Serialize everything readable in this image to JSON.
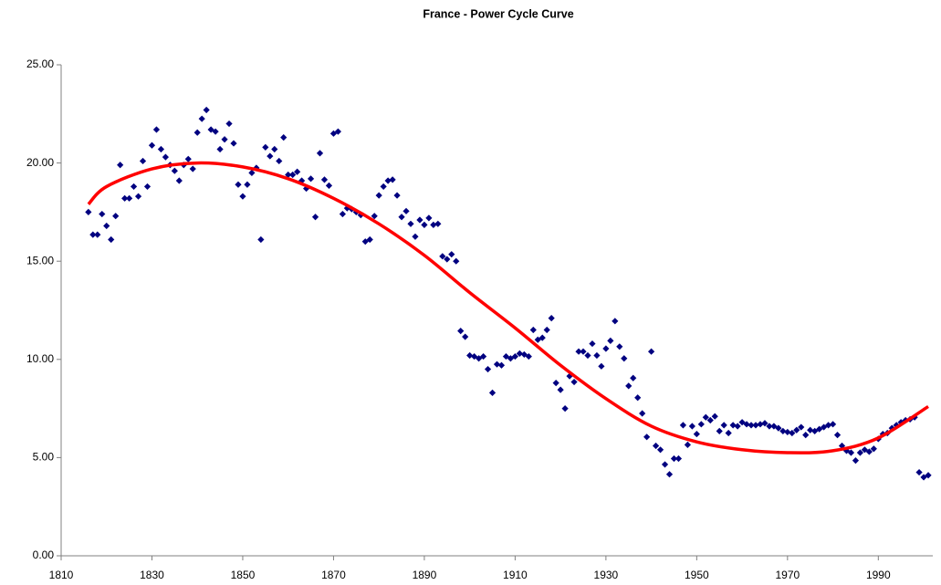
{
  "chart_data": {
    "type": "scatter",
    "title": "France - Power Cycle Curve",
    "xlim": [
      1810,
      2002
    ],
    "xticks": [
      1810,
      1830,
      1850,
      1870,
      1890,
      1910,
      1930,
      1950,
      1970,
      1990
    ],
    "ylim": [
      0,
      25
    ],
    "yticks": [
      {
        "value": 0,
        "label": "0.00"
      },
      {
        "value": 5,
        "label": "5.00"
      },
      {
        "value": 10,
        "label": "10.00"
      },
      {
        "value": 15,
        "label": "15.00"
      },
      {
        "value": 20,
        "label": "20.00"
      },
      {
        "value": 25,
        "label": "25.00"
      }
    ],
    "series": [
      {
        "style": "markers",
        "color": "#000080",
        "x": [
          1816,
          1817,
          1818,
          1819,
          1820,
          1821,
          1822,
          1823,
          1824,
          1825,
          1826,
          1827,
          1828,
          1829,
          1830,
          1831,
          1832,
          1833,
          1834,
          1835,
          1836,
          1837,
          1838,
          1839,
          1840,
          1841,
          1842,
          1843,
          1844,
          1845,
          1846,
          1847,
          1848,
          1849,
          1850,
          1851,
          1852,
          1853,
          1854,
          1855,
          1856,
          1857,
          1858,
          1859,
          1860,
          1861,
          1862,
          1863,
          1864,
          1865,
          1866,
          1867,
          1868,
          1869,
          1870,
          1871,
          1872,
          1873,
          1874,
          1875,
          1876,
          1877,
          1878,
          1879,
          1880,
          1881,
          1882,
          1883,
          1884,
          1885,
          1886,
          1887,
          1888,
          1889,
          1890,
          1891,
          1892,
          1893,
          1894,
          1895,
          1896,
          1897,
          1898,
          1899,
          1900,
          1901,
          1902,
          1903,
          1904,
          1905,
          1906,
          1907,
          1908,
          1909,
          1910,
          1911,
          1912,
          1913,
          1914,
          1915,
          1916,
          1917,
          1918,
          1919,
          1920,
          1921,
          1922,
          1923,
          1924,
          1925,
          1926,
          1927,
          1928,
          1929,
          1930,
          1931,
          1932,
          1933,
          1934,
          1935,
          1936,
          1937,
          1938,
          1939,
          1940,
          1941,
          1942,
          1943,
          1944,
          1945,
          1946,
          1947,
          1948,
          1949,
          1950,
          1951,
          1952,
          1953,
          1954,
          1955,
          1956,
          1957,
          1958,
          1959,
          1960,
          1961,
          1962,
          1963,
          1964,
          1965,
          1966,
          1967,
          1968,
          1969,
          1970,
          1971,
          1972,
          1973,
          1974,
          1975,
          1976,
          1977,
          1978,
          1979,
          1980,
          1981,
          1982,
          1983,
          1984,
          1985,
          1986,
          1987,
          1988,
          1989,
          1990,
          1991,
          1992,
          1993,
          1994,
          1995,
          1996,
          1997,
          1998,
          1999,
          2000,
          2001
        ],
        "values": [
          17.5,
          16.35,
          16.35,
          17.4,
          16.8,
          16.1,
          17.3,
          19.9,
          18.2,
          18.2,
          18.8,
          18.3,
          20.1,
          18.8,
          20.9,
          21.7,
          20.7,
          20.3,
          19.9,
          19.6,
          19.1,
          19.9,
          20.2,
          19.7,
          21.55,
          22.25,
          22.7,
          21.7,
          21.6,
          20.7,
          21.2,
          22.0,
          21.0,
          18.9,
          18.3,
          18.9,
          19.5,
          19.75,
          16.1,
          20.8,
          20.35,
          20.7,
          20.1,
          21.3,
          19.4,
          19.4,
          19.55,
          19.1,
          18.7,
          19.2,
          17.25,
          20.5,
          19.15,
          18.85,
          21.5,
          21.6,
          17.4,
          17.7,
          17.65,
          17.5,
          17.35,
          16.0,
          16.1,
          17.3,
          18.35,
          18.8,
          19.1,
          19.15,
          18.35,
          17.25,
          17.55,
          16.9,
          16.25,
          17.1,
          16.85,
          17.2,
          16.85,
          16.9,
          15.25,
          15.1,
          15.35,
          15.0,
          11.45,
          11.15,
          10.2,
          10.15,
          10.05,
          10.15,
          9.5,
          8.3,
          9.75,
          9.7,
          10.15,
          10.05,
          10.15,
          10.3,
          10.25,
          10.15,
          11.5,
          11.0,
          11.1,
          11.5,
          12.1,
          8.8,
          8.45,
          7.5,
          9.15,
          8.85,
          10.4,
          10.4,
          10.2,
          10.8,
          10.2,
          9.65,
          10.55,
          10.95,
          11.95,
          10.65,
          10.05,
          8.65,
          9.05,
          8.05,
          7.25,
          6.05,
          10.4,
          5.6,
          5.4,
          4.65,
          4.15,
          4.95,
          4.95,
          6.65,
          5.65,
          6.6,
          6.2,
          6.7,
          7.05,
          6.9,
          7.1,
          6.35,
          6.65,
          6.25,
          6.65,
          6.6,
          6.8,
          6.7,
          6.65,
          6.65,
          6.7,
          6.75,
          6.6,
          6.6,
          6.5,
          6.35,
          6.3,
          6.25,
          6.4,
          6.55,
          6.15,
          6.4,
          6.35,
          6.45,
          6.55,
          6.65,
          6.7,
          6.15,
          5.6,
          5.35,
          5.25,
          4.85,
          5.25,
          5.4,
          5.3,
          5.45,
          5.95,
          6.2,
          6.25,
          6.5,
          6.65,
          6.8,
          6.9,
          6.95,
          7.05,
          4.25,
          4.0,
          4.1
        ]
      },
      {
        "style": "line",
        "color": "#ff0000",
        "x": [
          1816,
          1820,
          1830,
          1840,
          1850,
          1860,
          1870,
          1880,
          1890,
          1900,
          1910,
          1920,
          1930,
          1940,
          1950,
          1960,
          1970,
          1980,
          1990,
          2001
        ],
        "values": [
          17.9,
          18.8,
          19.7,
          20.0,
          19.8,
          19.2,
          18.2,
          16.9,
          15.3,
          13.4,
          11.6,
          9.7,
          8.0,
          6.6,
          5.8,
          5.4,
          5.25,
          5.35,
          6.0,
          7.6
        ]
      }
    ]
  }
}
